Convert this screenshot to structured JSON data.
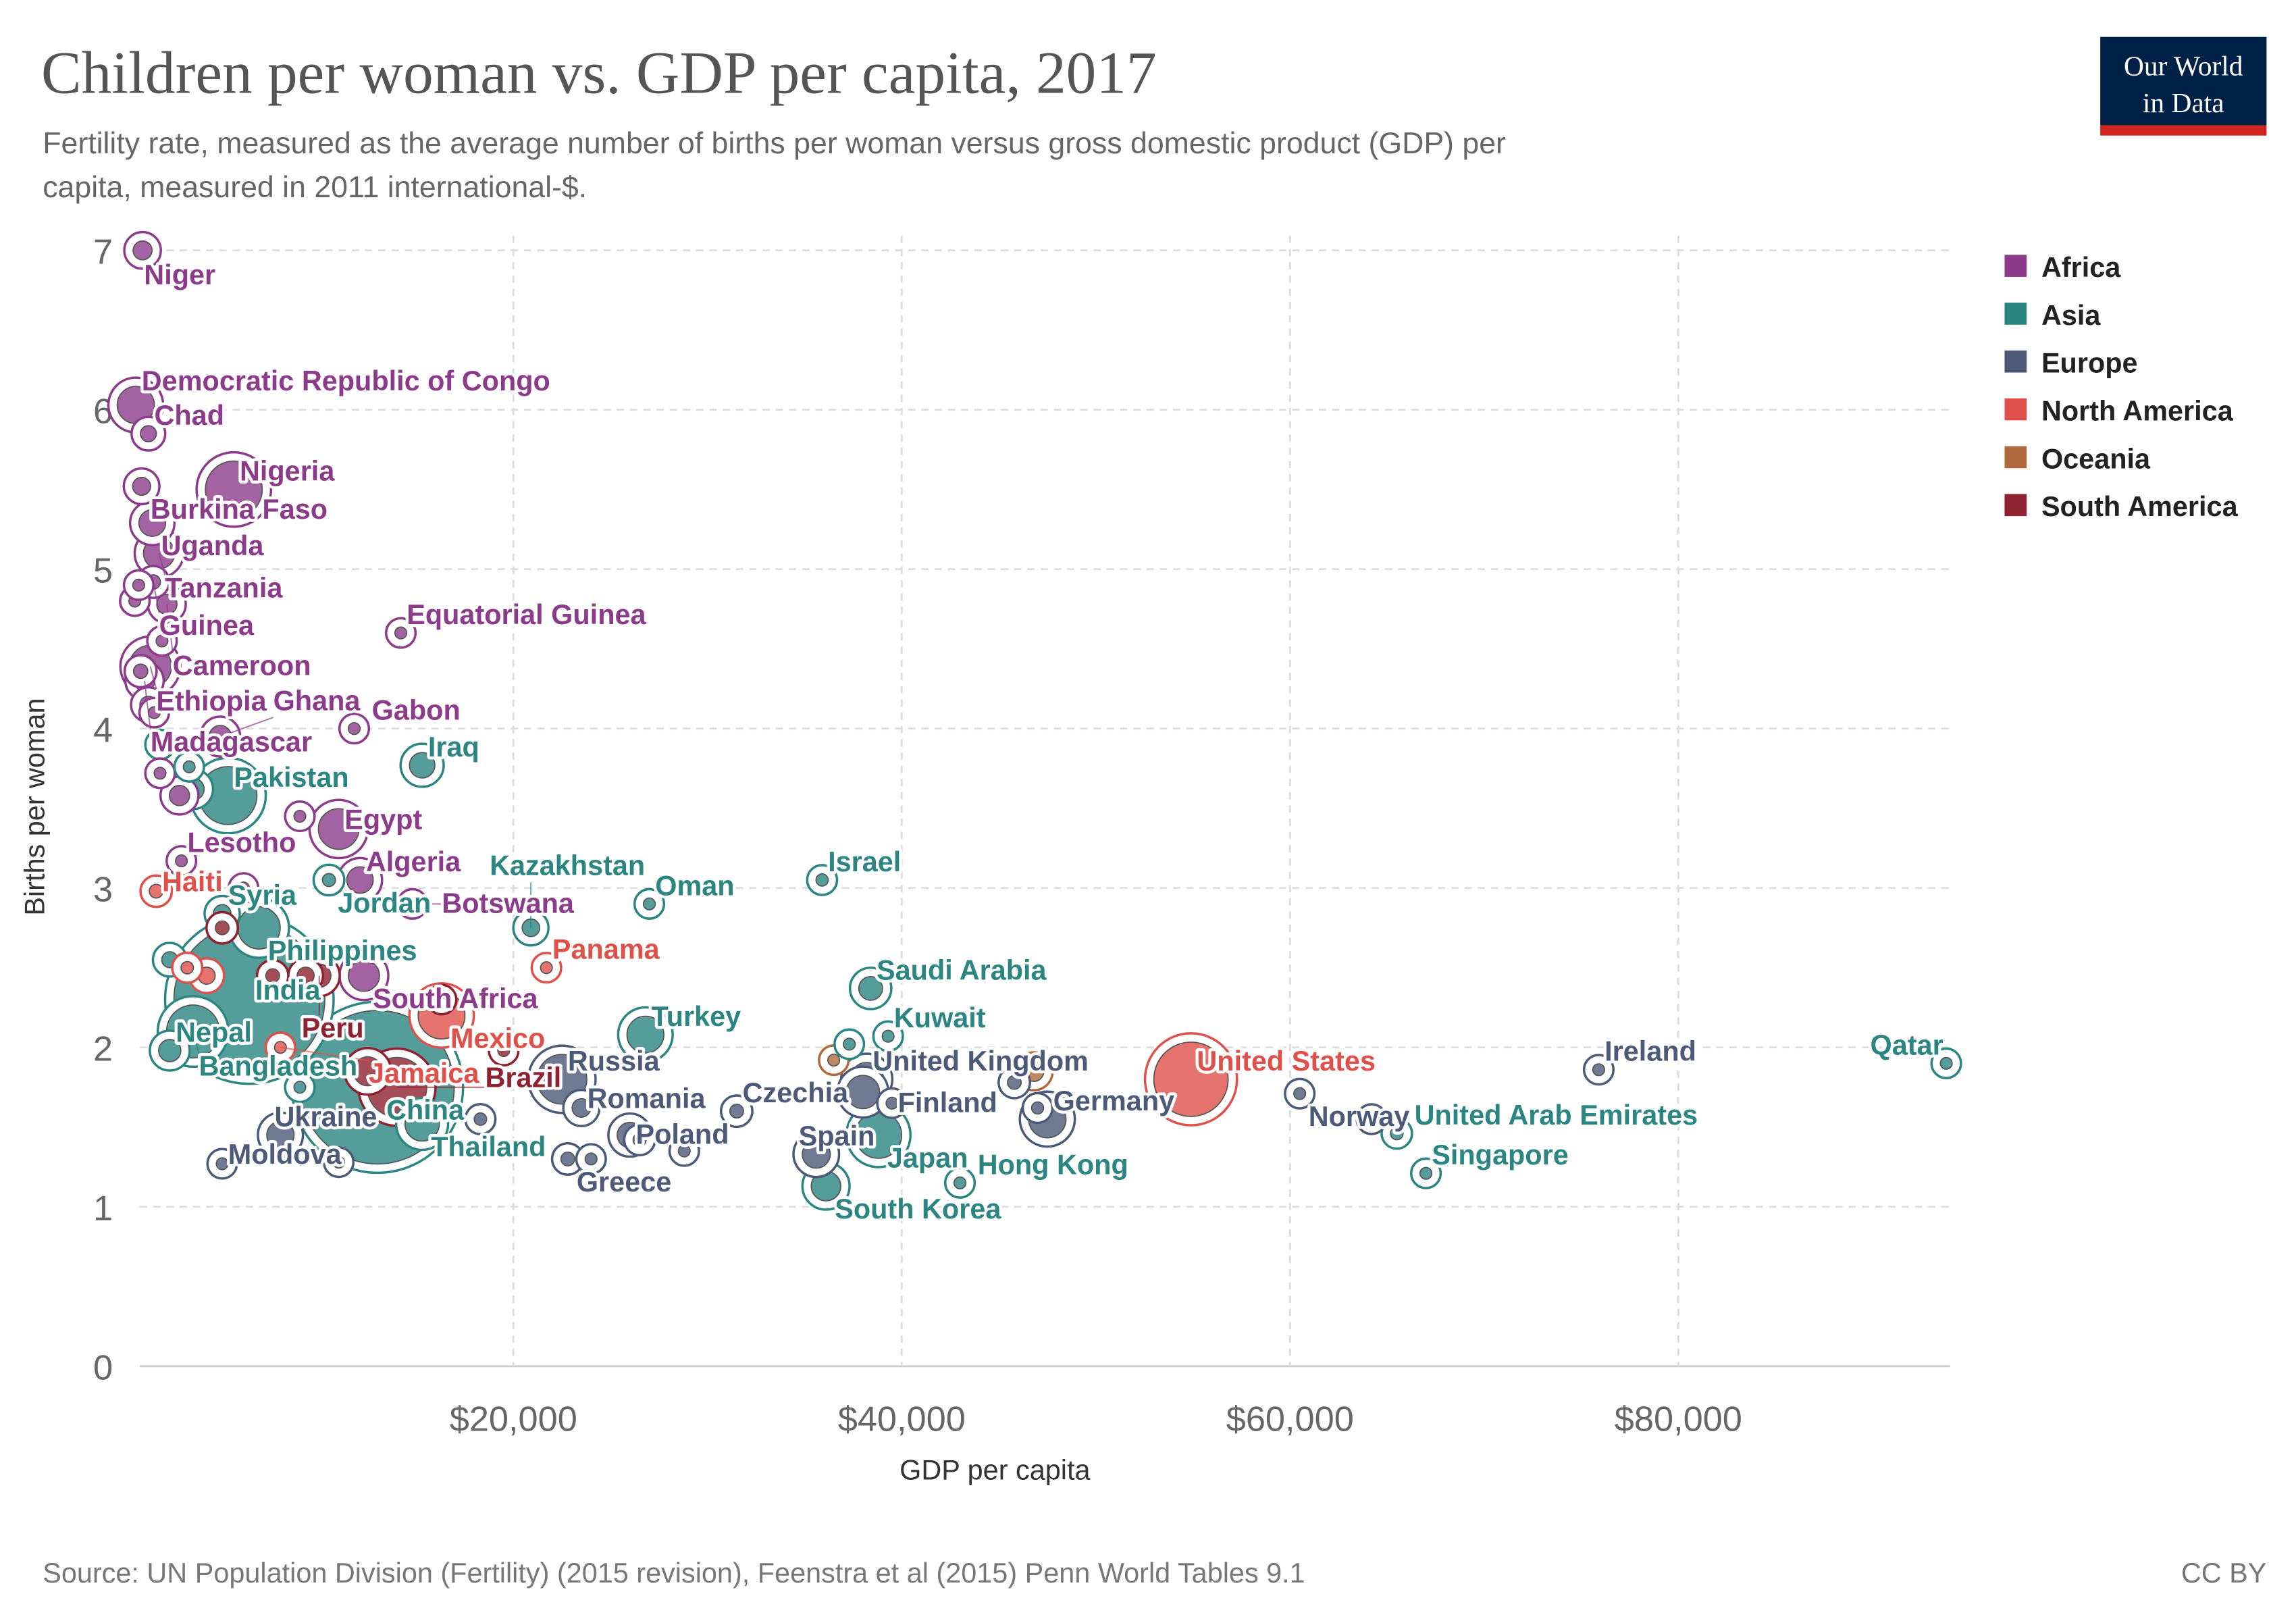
{
  "header": {
    "title": "Children per woman vs. GDP per capita, 2017",
    "subtitle_line1": "Fertility rate, measured as the average number of births per woman versus gross domestic product (GDP) per",
    "subtitle_line2": "capita, measured in 2011 international-$."
  },
  "logo": {
    "line1": "Our World",
    "line2": "in Data"
  },
  "footer": {
    "source": "Source: UN Population Division (Fertility) (2015 revision), Feenstra et al (2015) Penn World Tables 9.1",
    "license": "CC BY"
  },
  "colors": {
    "Africa": "#8c3b8a",
    "Asia": "#2b8581",
    "Europe": "#4c5a78",
    "North America": "#e0504a",
    "Oceania": "#b0693c",
    "South America": "#8e2231"
  },
  "chart_data": {
    "type": "scatter",
    "title": "Children per woman vs. GDP per capita, 2017",
    "xlabel": "GDP per capita",
    "ylabel": "Births per woman",
    "xlim": [
      0,
      94000
    ],
    "ylim": [
      0,
      7
    ],
    "x_ticks": [
      20000,
      40000,
      60000,
      80000
    ],
    "x_tick_labels": [
      "$20,000",
      "$40,000",
      "$60,000",
      "$80,000"
    ],
    "y_ticks": [
      0,
      1,
      2,
      3,
      4,
      5,
      6,
      7
    ],
    "y_tick_labels": [
      "0",
      "1",
      "2",
      "3",
      "4",
      "5",
      "6",
      "7"
    ],
    "grid": true,
    "legend_position": "right",
    "legend": [
      "Africa",
      "Asia",
      "Europe",
      "North America",
      "Oceania",
      "South America"
    ],
    "points": [
      {
        "name": "Niger",
        "region": "Africa",
        "x": 900,
        "y": 7.0,
        "pop": 21,
        "label": true
      },
      {
        "name": "Democratic Republic of Congo",
        "region": "Africa",
        "x": 550,
        "y": 6.03,
        "pop": 81,
        "label": true,
        "above": true
      },
      {
        "name": "Chad",
        "region": "Africa",
        "x": 1200,
        "y": 5.85,
        "pop": 15,
        "label": true
      },
      {
        "name": "Nigeria",
        "region": "Africa",
        "x": 5600,
        "y": 5.5,
        "pop": 190,
        "label": true
      },
      {
        "name": "Burkina Faso",
        "region": "Africa",
        "x": 850,
        "y": 5.52,
        "pop": 19,
        "label": true
      },
      {
        "name": "Uganda",
        "region": "Africa",
        "x": 1400,
        "y": 5.29,
        "pop": 42,
        "label": true
      },
      {
        "name": "Tanzania",
        "region": "Africa",
        "x": 1750,
        "y": 5.1,
        "pop": 57,
        "label": true
      },
      {
        "name": "Guinea",
        "region": "Africa",
        "x": 1450,
        "y": 4.92,
        "pop": 12,
        "label": true
      },
      {
        "name": "Cameroon",
        "region": "Africa",
        "x": 2150,
        "y": 4.78,
        "pop": 24,
        "label": true
      },
      {
        "name": "Equatorial Guinea",
        "region": "Africa",
        "x": 14200,
        "y": 4.6,
        "pop": 1.3,
        "label": true
      },
      {
        "name": "Ethiopia",
        "region": "Africa",
        "x": 1300,
        "y": 4.39,
        "pop": 105,
        "label": true
      },
      {
        "name": "Madagascar",
        "region": "Africa",
        "x": 1000,
        "y": 4.3,
        "pop": 25,
        "label": true
      },
      {
        "name": "Ghana",
        "region": "Africa",
        "x": 4900,
        "y": 3.95,
        "pop": 29,
        "label": true
      },
      {
        "name": "Gabon",
        "region": "Africa",
        "x": 11800,
        "y": 4.0,
        "pop": 2,
        "label": true
      },
      {
        "name": "Iraq",
        "region": "Asia",
        "x": 15300,
        "y": 3.77,
        "pop": 38,
        "label": true
      },
      {
        "name": "Pakistan",
        "region": "Asia",
        "x": 5300,
        "y": 3.58,
        "pop": 197,
        "label": true
      },
      {
        "name": "Egypt",
        "region": "Africa",
        "x": 11000,
        "y": 3.37,
        "pop": 97,
        "label": true
      },
      {
        "name": "Lesotho",
        "region": "Africa",
        "x": 2900,
        "y": 3.17,
        "pop": 2.2,
        "label": true
      },
      {
        "name": "Algeria",
        "region": "Africa",
        "x": 12100,
        "y": 3.05,
        "pop": 41,
        "label": true
      },
      {
        "name": "Haiti",
        "region": "North America",
        "x": 1600,
        "y": 2.98,
        "pop": 11,
        "label": true
      },
      {
        "name": "Syria",
        "region": "Asia",
        "x": 5000,
        "y": 2.84,
        "pop": 18,
        "label": true
      },
      {
        "name": "Jordan",
        "region": "Asia",
        "x": 10500,
        "y": 3.05,
        "pop": 10,
        "label": true
      },
      {
        "name": "Botswana",
        "region": "Africa",
        "x": 14800,
        "y": 2.9,
        "pop": 2.3,
        "label": true
      },
      {
        "name": "Philippines",
        "region": "Asia",
        "x": 6900,
        "y": 2.75,
        "pop": 105,
        "label": true
      },
      {
        "name": "India",
        "region": "Asia",
        "x": 6400,
        "y": 2.3,
        "pop": 1339,
        "label": true
      },
      {
        "name": "South Africa",
        "region": "Africa",
        "x": 12300,
        "y": 2.45,
        "pop": 57,
        "label": true
      },
      {
        "name": "Peru",
        "region": "South America",
        "x": 10000,
        "y": 2.45,
        "pop": 32,
        "label": true
      },
      {
        "name": "Panama",
        "region": "North America",
        "x": 21700,
        "y": 2.5,
        "pop": 4,
        "label": true
      },
      {
        "name": "Mexico",
        "region": "North America",
        "x": 16300,
        "y": 2.2,
        "pop": 129,
        "label": true
      },
      {
        "name": "Bangladesh",
        "region": "Asia",
        "x": 3500,
        "y": 2.1,
        "pop": 165,
        "label": true
      },
      {
        "name": "Nepal",
        "region": "Asia",
        "x": 2300,
        "y": 1.98,
        "pop": 29,
        "label": true
      },
      {
        "name": "Jamaica",
        "region": "North America",
        "x": 8000,
        "y": 2.0,
        "pop": 2.9,
        "label": true
      },
      {
        "name": "China",
        "region": "Asia",
        "x": 13000,
        "y": 1.75,
        "pop": 1386,
        "label": true
      },
      {
        "name": "Brazil",
        "region": "South America",
        "x": 14000,
        "y": 1.75,
        "pop": 209,
        "label": true
      },
      {
        "name": "Thailand",
        "region": "Asia",
        "x": 15300,
        "y": 1.52,
        "pop": 69,
        "label": true
      },
      {
        "name": "Ukraine",
        "region": "Europe",
        "x": 8000,
        "y": 1.45,
        "pop": 44,
        "label": true
      },
      {
        "name": "Moldova",
        "region": "Europe",
        "x": 5000,
        "y": 1.27,
        "pop": 3.5,
        "label": true
      },
      {
        "name": "Turkey",
        "region": "Asia",
        "x": 26800,
        "y": 2.08,
        "pop": 80,
        "label": true
      },
      {
        "name": "Russia",
        "region": "Europe",
        "x": 22500,
        "y": 1.8,
        "pop": 145,
        "label": true
      },
      {
        "name": "Romania",
        "region": "Europe",
        "x": 23500,
        "y": 1.62,
        "pop": 20,
        "label": true
      },
      {
        "name": "Czechia",
        "region": "Europe",
        "x": 31500,
        "y": 1.6,
        "pop": 11,
        "label": true
      },
      {
        "name": "Poland",
        "region": "Europe",
        "x": 26000,
        "y": 1.45,
        "pop": 38,
        "label": true
      },
      {
        "name": "Greece",
        "region": "Europe",
        "x": 22800,
        "y": 1.3,
        "pop": 11,
        "label": true
      },
      {
        "name": "Oman",
        "region": "Asia",
        "x": 27000,
        "y": 2.9,
        "pop": 4.6,
        "label": true
      },
      {
        "name": "Kazakhstan",
        "region": "Asia",
        "x": 20900,
        "y": 2.75,
        "pop": 18,
        "label": true
      },
      {
        "name": "Israel",
        "region": "Asia",
        "x": 35900,
        "y": 3.05,
        "pop": 8.7,
        "label": true
      },
      {
        "name": "Saudi Arabia",
        "region": "Asia",
        "x": 38400,
        "y": 2.37,
        "pop": 33,
        "label": true
      },
      {
        "name": "Kuwait",
        "region": "Asia",
        "x": 39300,
        "y": 2.07,
        "pop": 4.1,
        "label": true
      },
      {
        "name": "United Kingdom",
        "region": "Europe",
        "x": 38200,
        "y": 1.8,
        "pop": 66,
        "label": true
      },
      {
        "name": "Finland",
        "region": "Europe",
        "x": 39500,
        "y": 1.65,
        "pop": 5.5,
        "label": true
      },
      {
        "name": "Japan",
        "region": "Asia",
        "x": 38800,
        "y": 1.45,
        "pop": 127,
        "label": true
      },
      {
        "name": "Spain",
        "region": "Europe",
        "x": 35600,
        "y": 1.33,
        "pop": 46,
        "label": true
      },
      {
        "name": "Hong Kong",
        "region": "Asia",
        "x": 43000,
        "y": 1.15,
        "pop": 7.4,
        "label": true
      },
      {
        "name": "South Korea",
        "region": "Asia",
        "x": 36100,
        "y": 1.13,
        "pop": 51,
        "label": true
      },
      {
        "name": "Germany",
        "region": "Europe",
        "x": 47500,
        "y": 1.55,
        "pop": 82,
        "label": true
      },
      {
        "name": "United States",
        "region": "North America",
        "x": 54900,
        "y": 1.8,
        "pop": 325,
        "label": true
      },
      {
        "name": "Norway",
        "region": "Europe",
        "x": 60500,
        "y": 1.71,
        "pop": 5.3,
        "label": true
      },
      {
        "name": "Ireland",
        "region": "Europe",
        "x": 75900,
        "y": 1.86,
        "pop": 4.8,
        "label": true
      },
      {
        "name": "Qatar",
        "region": "Asia",
        "x": 93800,
        "y": 1.9,
        "pop": 2.6,
        "label": true,
        "left": true
      },
      {
        "name": "United Arab Emirates",
        "region": "Asia",
        "x": 65500,
        "y": 1.46,
        "pop": 9.4,
        "label": true
      },
      {
        "name": "Singapore",
        "region": "Asia",
        "x": 67000,
        "y": 1.21,
        "pop": 5.7,
        "label": true
      },
      {
        "name": "",
        "region": "Africa",
        "x": 500,
        "y": 4.8,
        "pop": 6
      },
      {
        "name": "",
        "region": "Africa",
        "x": 700,
        "y": 4.9,
        "pop": 5
      },
      {
        "name": "",
        "region": "Africa",
        "x": 1900,
        "y": 4.55,
        "pop": 8
      },
      {
        "name": "",
        "region": "Africa",
        "x": 800,
        "y": 4.36,
        "pop": 12
      },
      {
        "name": "",
        "region": "Africa",
        "x": 1500,
        "y": 4.1,
        "pop": 8
      },
      {
        "name": "",
        "region": "Africa",
        "x": 1200,
        "y": 4.15,
        "pop": 17
      },
      {
        "name": "",
        "region": "Africa",
        "x": 1800,
        "y": 3.72,
        "pop": 4
      },
      {
        "name": "",
        "region": "Asia",
        "x": 1800,
        "y": 3.9,
        "pop": 6
      },
      {
        "name": "",
        "region": "Africa",
        "x": 2800,
        "y": 3.58,
        "pop": 24
      },
      {
        "name": "",
        "region": "Asia",
        "x": 3500,
        "y": 3.62,
        "pop": 29
      },
      {
        "name": "",
        "region": "Asia",
        "x": 3300,
        "y": 3.76,
        "pop": 3
      },
      {
        "name": "",
        "region": "Africa",
        "x": 9000,
        "y": 3.45,
        "pop": 3
      },
      {
        "name": "",
        "region": "Africa",
        "x": 6100,
        "y": 3.0,
        "pop": 2
      },
      {
        "name": "",
        "region": "South America",
        "x": 5000,
        "y": 2.75,
        "pop": 11
      },
      {
        "name": "",
        "region": "Asia",
        "x": 2300,
        "y": 2.55,
        "pop": 15
      },
      {
        "name": "",
        "region": "North America",
        "x": 3200,
        "y": 2.5,
        "pop": 9
      },
      {
        "name": "",
        "region": "North America",
        "x": 4200,
        "y": 2.45,
        "pop": 17
      },
      {
        "name": "",
        "region": "South America",
        "x": 7600,
        "y": 2.45,
        "pop": 11
      },
      {
        "name": "",
        "region": "South America",
        "x": 9300,
        "y": 2.45,
        "pop": 17
      },
      {
        "name": "",
        "region": "South America",
        "x": 16300,
        "y": 2.3,
        "pop": 7
      },
      {
        "name": "",
        "region": "South America",
        "x": 19500,
        "y": 1.98,
        "pop": 3.5
      },
      {
        "name": "",
        "region": "Asia",
        "x": 9000,
        "y": 1.75,
        "pop": 6
      },
      {
        "name": "",
        "region": "South America",
        "x": 12500,
        "y": 1.85,
        "pop": 49
      },
      {
        "name": "",
        "region": "Europe",
        "x": 18300,
        "y": 1.55,
        "pop": 9
      },
      {
        "name": "",
        "region": "Europe",
        "x": 11000,
        "y": 1.28,
        "pop": 7
      },
      {
        "name": "",
        "region": "Europe",
        "x": 24000,
        "y": 1.3,
        "pop": 2
      },
      {
        "name": "",
        "region": "Europe",
        "x": 28800,
        "y": 1.35,
        "pop": 2
      },
      {
        "name": "",
        "region": "Asia",
        "x": 37300,
        "y": 2.02,
        "pop": 1.5
      },
      {
        "name": "",
        "region": "Oceania",
        "x": 36500,
        "y": 1.92,
        "pop": 4.7
      },
      {
        "name": "",
        "region": "Oceania",
        "x": 46800,
        "y": 1.85,
        "pop": 24
      },
      {
        "name": "",
        "region": "Europe",
        "x": 45800,
        "y": 1.78,
        "pop": 11
      },
      {
        "name": "",
        "region": "Europe",
        "x": 47000,
        "y": 1.62,
        "pop": 8.5
      },
      {
        "name": "",
        "region": "Europe",
        "x": 64200,
        "y": 1.55,
        "pop": 8.5
      },
      {
        "name": "",
        "region": "Europe",
        "x": 38000,
        "y": 1.72,
        "pop": 65
      },
      {
        "name": "",
        "region": "Europe",
        "x": 26500,
        "y": 1.42,
        "pop": 10
      }
    ]
  }
}
